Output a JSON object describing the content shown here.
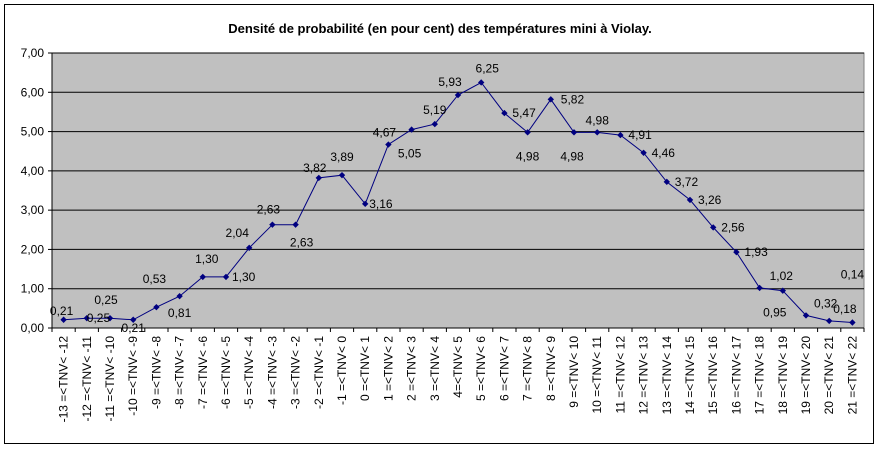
{
  "chart_data": {
    "type": "line",
    "title": "Densité de probabilité (en pour cent) des températures mini à Violay.",
    "xlabel": "",
    "ylabel": "",
    "ylim": [
      0,
      7
    ],
    "yticks": [
      "0,00",
      "1,00",
      "2,00",
      "3,00",
      "4,00",
      "5,00",
      "6,00",
      "7,00"
    ],
    "grid": true,
    "legend": "none",
    "colors": {
      "plot_bg": "#c0c0c0",
      "line": "#000080",
      "grid": "#000000"
    },
    "categories": [
      "-13 =<TNV< -12",
      "-12 =<TNV< -11",
      "-11 =<TNV< -10",
      "-10 =<TNV< -9",
      "-9 =<TNV< -8",
      "-8 =<TNV< -7",
      "-7 =<TNV< -6",
      "-6 =<TNV< -5",
      "-5 =<TNV< -4",
      "-4 =<TNV< -3",
      "-3 =<TNV< -2",
      "-2 =<TNV< -1",
      "-1 =<TNV< 0",
      "0 =<TNV< 1",
      "1 =<TNV< 2",
      "2 =<TNV< 3",
      "3 =<TNV< 4",
      "4=<TNV< 5",
      "5 =<TNV< 6",
      "6 =<TNV< 7",
      "7 =<TNV< 8",
      "8 =<TNV< 9",
      "9 =<TNV< 10",
      "10 =<TNV< 11",
      "11 =<TNV< 12",
      "12 =<TNV< 13",
      "13 =<TNV< 14",
      "14 =<TNV< 15",
      "15 =<TNV< 16",
      "16 =<TNV< 17",
      "17 =<TNV< 18",
      "18 =<TNV< 19",
      "19 =<TNV< 20",
      "20 =<TNV< 21",
      "21 =<TNV< 22"
    ],
    "values": [
      0.21,
      0.25,
      0.25,
      0.21,
      0.53,
      0.81,
      1.3,
      1.3,
      2.04,
      2.63,
      2.63,
      3.82,
      3.89,
      3.16,
      4.67,
      5.05,
      5.19,
      5.93,
      6.25,
      5.47,
      4.98,
      5.82,
      4.98,
      4.98,
      4.91,
      4.46,
      3.72,
      3.26,
      2.56,
      1.93,
      1.02,
      0.95,
      0.32,
      0.18,
      0.14
    ],
    "data_labels": [
      "0,21",
      "0,25",
      "0,25",
      "0,21",
      "0,53",
      "0,81",
      "1,30",
      "1,30",
      "2,04",
      "2,63",
      "2,63",
      "3,82",
      "3,89",
      "3,16",
      "4,67",
      "5,05",
      "5,19",
      "5,93",
      "6,25",
      "5,47",
      "4,98",
      "5,82",
      "4,98",
      "4,98",
      "4,91",
      "4,46",
      "3,72",
      "3,26",
      "2,56",
      "1,93",
      "1,02",
      "0,95",
      "0,32",
      "0,18",
      "0,14"
    ]
  }
}
